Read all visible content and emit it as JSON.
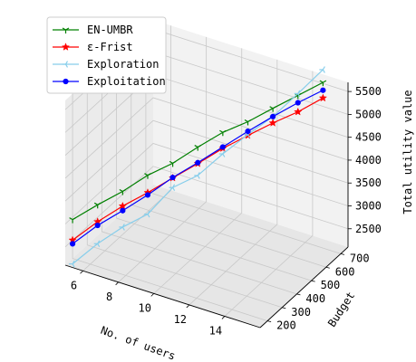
{
  "chart_data": {
    "type": "line",
    "projection": "3d",
    "title": "",
    "xlabel": "No. of users",
    "ylabel": "Budget",
    "zlabel": "Total utility value",
    "xticks": [
      6,
      8,
      10,
      12,
      14
    ],
    "yticks": [
      200,
      300,
      400,
      500,
      600,
      700
    ],
    "zticks": [
      2500,
      3000,
      3500,
      4000,
      4500,
      5000,
      5500
    ],
    "xlim": [
      5,
      16
    ],
    "ylim": [
      150,
      750
    ],
    "zlim": [
      2100,
      5700
    ],
    "grid": true,
    "legend_position": "top-left",
    "x": [
      5,
      6,
      7,
      8,
      9,
      10,
      11,
      12,
      13,
      14,
      15
    ],
    "y": [
      200,
      250,
      300,
      350,
      400,
      450,
      500,
      550,
      600,
      650,
      700
    ],
    "series": [
      {
        "name": "EN-UMBR",
        "color": "#008000",
        "marker": "tri_down",
        "values": [
          2950,
          3250,
          3520,
          3850,
          4090,
          4420,
          4720,
          4930,
          5200,
          5460,
          5720
        ]
      },
      {
        "name": "ε-Frist",
        "color": "#ff0000",
        "marker": "star",
        "values": [
          2500,
          2880,
          3200,
          3470,
          3770,
          4060,
          4370,
          4630,
          4880,
          5100,
          5380
        ]
      },
      {
        "name": "Exploration",
        "color": "#87ceeb",
        "marker": "tri_left",
        "values": [
          1980,
          2400,
          2740,
          3000,
          3560,
          3800,
          4250,
          4650,
          5020,
          5500,
          6000
        ]
      },
      {
        "name": "Exploitation",
        "color": "#0000ff",
        "marker": "circle",
        "values": [
          2420,
          2800,
          3100,
          3420,
          3780,
          4080,
          4400,
          4720,
          5020,
          5300,
          5550
        ]
      }
    ]
  }
}
